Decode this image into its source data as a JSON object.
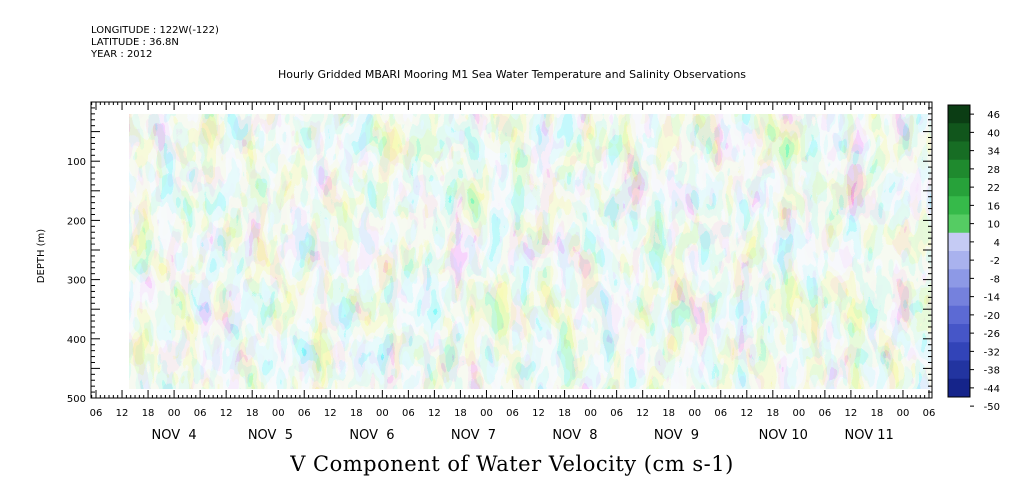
{
  "header": {
    "longitude": "LONGITUDE : 122W(-122)",
    "latitude": "LATITUDE : 36.8N",
    "year": "YEAR : 2012"
  },
  "chart_data": {
    "type": "heatmap",
    "title": "Hourly Gridded MBARI Mooring M1 Sea Water Temperature and Salinity Observations",
    "xlabel": "V Component of Water Velocity (cm s-1)",
    "ylabel": "DEPTH (m)",
    "ylim": [
      500,
      0
    ],
    "yticks": [
      100,
      200,
      300,
      400,
      500
    ],
    "xtick_hours": [
      "06",
      "12",
      "18",
      "00",
      "06",
      "12",
      "18",
      "00",
      "06",
      "12",
      "18",
      "00",
      "06",
      "12",
      "18",
      "00",
      "06",
      "12",
      "18",
      "00",
      "06",
      "12",
      "18",
      "00",
      "06",
      "12",
      "18",
      "00",
      "06",
      "12",
      "18",
      "00",
      "06"
    ],
    "date_labels": [
      "NOV  4",
      "NOV  5",
      "NOV  6",
      "NOV  7",
      "NOV  8",
      "NOV  9",
      "NOV 10",
      "NOV 11"
    ],
    "colorbar_levels": [
      "46",
      "40",
      "34",
      "28",
      "22",
      "16",
      "10",
      "4",
      "-2",
      "-8",
      "-14",
      "-20",
      "-26",
      "-32",
      "-38",
      "-44",
      "-50"
    ],
    "grid": false
  }
}
